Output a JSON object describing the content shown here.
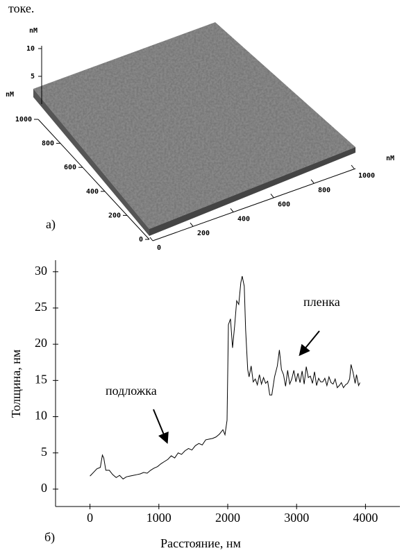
{
  "text_fragment": "токе.",
  "figure_a": {
    "label": "а)",
    "x_unit": "nM",
    "y_unit": "nM",
    "z_unit": "nM",
    "xticks": [
      0,
      200,
      400,
      600,
      800,
      1000
    ],
    "yticks": [
      0,
      200,
      400,
      600,
      800,
      1000
    ],
    "zticks": [
      5,
      10
    ]
  },
  "chart_data": {
    "type": "line",
    "label": "б)",
    "xlabel": "Расстояние, нм",
    "ylabel": "Толщина, нм",
    "color": "#000000",
    "annotations": [
      "подложка",
      "пленка"
    ],
    "xlim": [
      -500,
      4500
    ],
    "ylim": [
      -2.4,
      31.6
    ],
    "xticks": [
      0,
      1000,
      2000,
      3000,
      4000
    ],
    "yticks": [
      0,
      5,
      10,
      15,
      20,
      25,
      30
    ],
    "x": [
      0,
      50,
      100,
      150,
      180,
      200,
      230,
      280,
      330,
      380,
      430,
      480,
      530,
      580,
      630,
      680,
      730,
      780,
      830,
      880,
      930,
      980,
      1030,
      1080,
      1130,
      1180,
      1230,
      1280,
      1330,
      1380,
      1430,
      1480,
      1530,
      1580,
      1630,
      1680,
      1730,
      1780,
      1830,
      1880,
      1930,
      1960,
      1990,
      2010,
      2040,
      2070,
      2100,
      2130,
      2160,
      2190,
      2210,
      2240,
      2260,
      2290,
      2310,
      2340,
      2370,
      2400,
      2430,
      2460,
      2490,
      2520,
      2550,
      2580,
      2610,
      2640,
      2680,
      2720,
      2750,
      2780,
      2810,
      2840,
      2870,
      2900,
      2930,
      2960,
      2990,
      3020,
      3050,
      3080,
      3110,
      3140,
      3170,
      3200,
      3230,
      3260,
      3290,
      3320,
      3350,
      3380,
      3410,
      3440,
      3470,
      3500,
      3530,
      3560,
      3590,
      3620,
      3650,
      3680,
      3710,
      3740,
      3770,
      3790,
      3820,
      3850,
      3870,
      3900,
      3920
    ],
    "values": [
      1.8,
      2.3,
      2.8,
      3.0,
      4.7,
      4.3,
      2.6,
      2.6,
      2.0,
      1.6,
      1.9,
      1.4,
      1.7,
      1.8,
      1.9,
      2.0,
      2.1,
      2.3,
      2.2,
      2.6,
      2.9,
      3.1,
      3.5,
      3.8,
      4.1,
      4.6,
      4.3,
      5.0,
      4.8,
      5.3,
      5.6,
      5.4,
      6.0,
      6.3,
      6.1,
      6.8,
      6.9,
      7.0,
      7.2,
      7.6,
      8.2,
      7.5,
      9.5,
      22.7,
      23.5,
      19.5,
      22.5,
      26.0,
      25.5,
      28.5,
      29.4,
      28.0,
      22.0,
      16.5,
      15.5,
      17.0,
      14.8,
      15.2,
      14.4,
      15.8,
      14.5,
      15.4,
      14.6,
      14.9,
      13.0,
      13.0,
      15.5,
      17.0,
      19.2,
      16.5,
      15.8,
      14.2,
      16.4,
      14.5,
      15.2,
      16.4,
      14.8,
      16.0,
      14.7,
      16.3,
      14.5,
      16.9,
      15.4,
      15.6,
      14.6,
      16.2,
      14.3,
      15.3,
      14.8,
      14.8,
      15.3,
      14.3,
      15.5,
      14.7,
      14.5,
      15.2,
      14.0,
      14.3,
      14.7,
      14.0,
      14.4,
      14.6,
      15.2,
      17.2,
      16.1,
      14.6,
      15.8,
      14.3,
      14.7
    ]
  }
}
